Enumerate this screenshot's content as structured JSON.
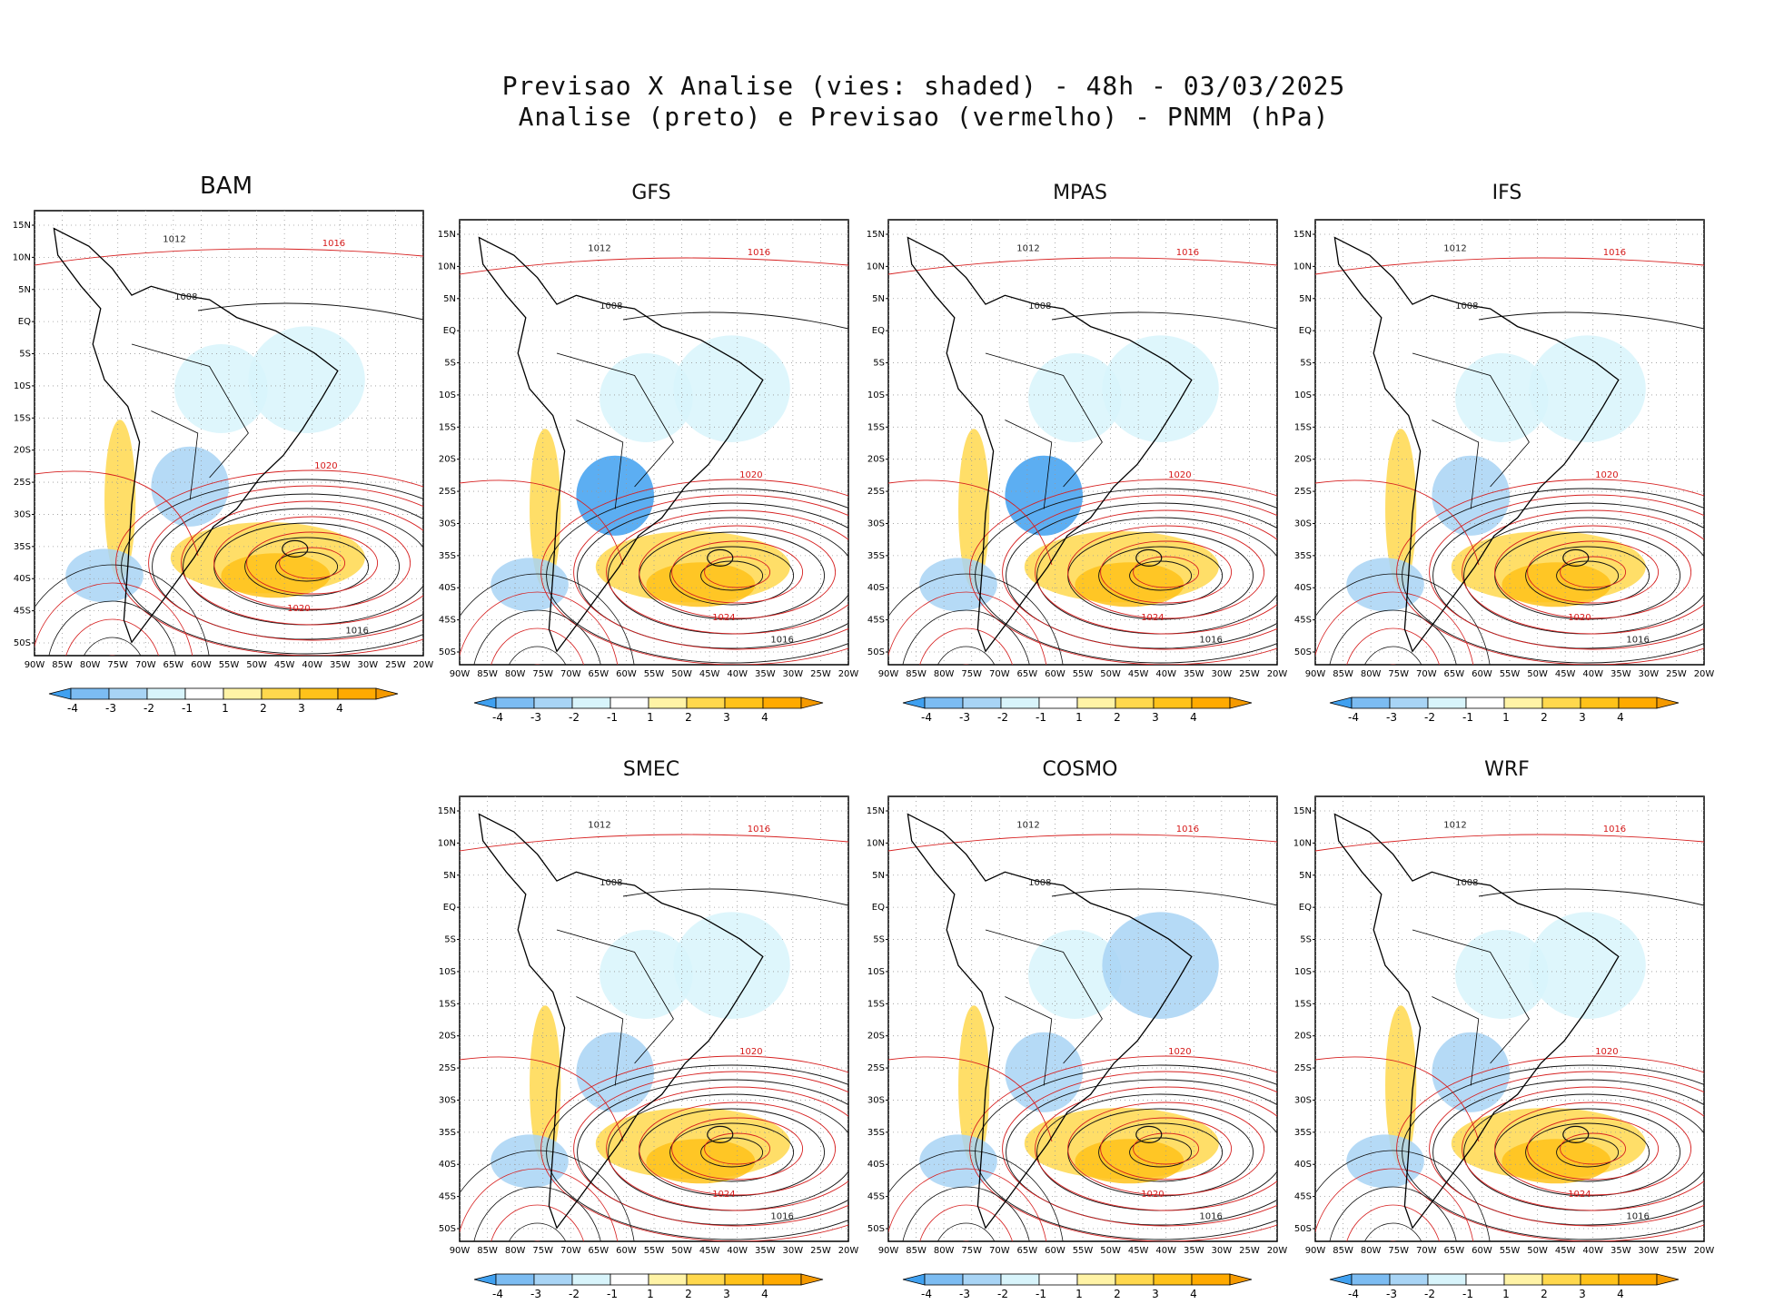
{
  "header": {
    "line1": "Previsao X Analise (vies: shaded) - 48h - 03/03/2025",
    "line2": "Analise (preto) e Previsao (vermelho) - PNMM (hPa)"
  },
  "axes": {
    "lat_labels": [
      "15N",
      "10N",
      "5N",
      "EQ",
      "5S",
      "10S",
      "15S",
      "20S",
      "25S",
      "30S",
      "35S",
      "40S",
      "45S",
      "50S"
    ],
    "lon_labels": [
      "90W",
      "85W",
      "80W",
      "75W",
      "70W",
      "65W",
      "60W",
      "55W",
      "50W",
      "45W",
      "40W",
      "35W",
      "30W",
      "25W",
      "20W"
    ]
  },
  "colorbar": {
    "labels": [
      "-4",
      "-3",
      "-2",
      "-1",
      "1",
      "2",
      "3",
      "4"
    ],
    "colors": [
      "#3fa0f0",
      "#7cbcf2",
      "#a8d4f5",
      "#d8f4fb",
      "#ffffff",
      "#fff3a6",
      "#ffd84d",
      "#ffc21a",
      "#ffaa00",
      "#f59a00"
    ]
  },
  "colors": {
    "analysis": "#111111",
    "forecast": "#d62020",
    "frame": "#000000"
  },
  "panels": [
    {
      "id": "bam",
      "title": "BAM",
      "labels": [
        "1012",
        "1016",
        "1008",
        "1020",
        "1016",
        "1020"
      ]
    },
    {
      "id": "gfs",
      "title": "GFS",
      "labels": [
        "1012",
        "1016",
        "1008",
        "1020",
        "1016",
        "1024"
      ]
    },
    {
      "id": "mpas",
      "title": "MPAS",
      "labels": [
        "1012",
        "1016",
        "1008",
        "1020",
        "1016",
        "1024"
      ]
    },
    {
      "id": "ifs",
      "title": "IFS",
      "labels": [
        "1012",
        "1016",
        "1008",
        "1020",
        "1016",
        "1020"
      ]
    },
    {
      "id": "smec",
      "title": "SMEC",
      "labels": [
        "1012",
        "1016",
        "1008",
        "1020",
        "1016",
        "1024"
      ]
    },
    {
      "id": "cosmo",
      "title": "COSMO",
      "labels": [
        "1012",
        "1016",
        "1008",
        "1020",
        "1016",
        "1020"
      ]
    },
    {
      "id": "wrf",
      "title": "WRF",
      "labels": [
        "1012",
        "1016",
        "1008",
        "1020",
        "1016",
        "1024"
      ]
    }
  ]
}
